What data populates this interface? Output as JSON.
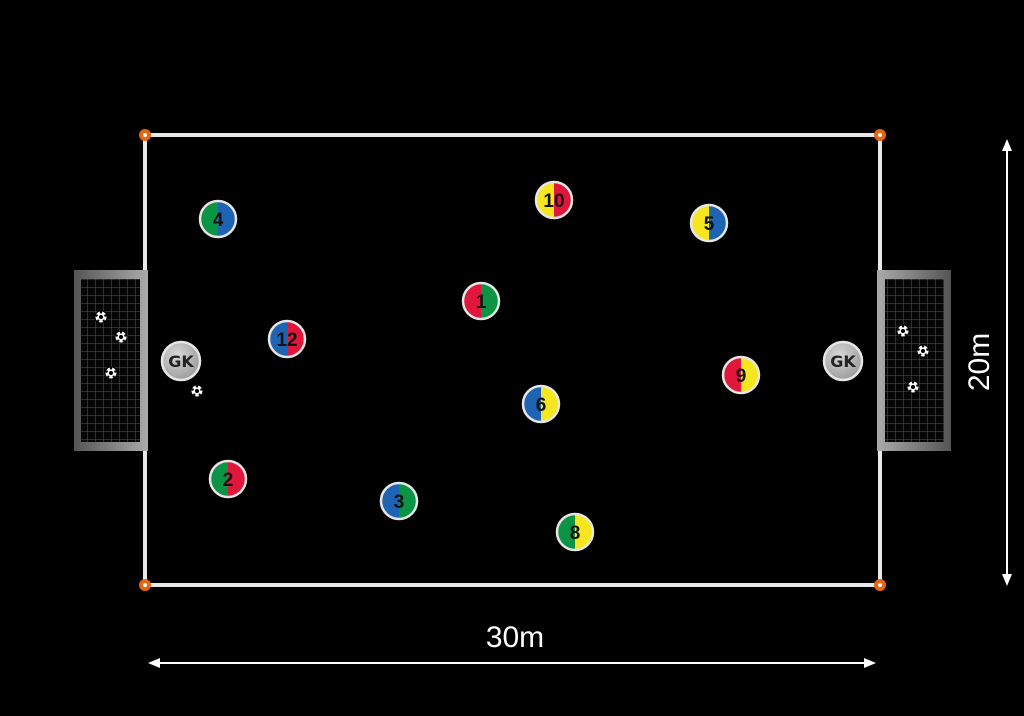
{
  "colors": {
    "background": "#000000",
    "field_line": "#e8e8e8",
    "corner_cone": "#e8650f",
    "goal_frame": "#8a8a8a",
    "goalkeeper": "#b5b5b5",
    "red": "#e0163a",
    "green": "#0a9444",
    "blue": "#1f63b3",
    "yellow": "#f5e620"
  },
  "dimensions": {
    "width_label": "30m",
    "height_label": "20m"
  },
  "goalkeepers": [
    {
      "label": "GK",
      "side": "left"
    },
    {
      "label": "GK",
      "side": "right"
    }
  ],
  "players": [
    {
      "number": "4",
      "left_color": "green",
      "right_color": "blue"
    },
    {
      "number": "10",
      "left_color": "yellow",
      "right_color": "red"
    },
    {
      "number": "5",
      "left_color": "yellow",
      "right_color": "blue"
    },
    {
      "number": "1",
      "left_color": "red",
      "right_color": "green"
    },
    {
      "number": "12",
      "left_color": "blue",
      "right_color": "red"
    },
    {
      "number": "9",
      "left_color": "red",
      "right_color": "yellow"
    },
    {
      "number": "6",
      "left_color": "blue",
      "right_color": "yellow"
    },
    {
      "number": "2",
      "left_color": "green",
      "right_color": "red"
    },
    {
      "number": "3",
      "left_color": "blue",
      "right_color": "green"
    },
    {
      "number": "8",
      "left_color": "green",
      "right_color": "yellow"
    }
  ],
  "balls": {
    "left_goal": 3,
    "right_goal": 3,
    "on_field": 1
  }
}
